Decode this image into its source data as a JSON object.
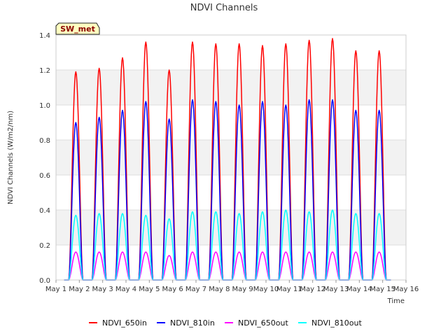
{
  "chart_data": {
    "type": "line",
    "title": "NDVI Channels",
    "xlabel": "Time",
    "ylabel": "NDVI Channels (W/m2/nm)",
    "badge": "SW_met",
    "xlim": [
      1,
      16
    ],
    "ylim": [
      0,
      1.4
    ],
    "x_ticks": [
      1,
      2,
      3,
      4,
      5,
      6,
      7,
      8,
      9,
      10,
      11,
      12,
      13,
      14,
      15,
      16
    ],
    "x_tick_labels": [
      "May 1",
      "May 2",
      "May 3",
      "May 4",
      "May 5",
      "May 6",
      "May 7",
      "May 8",
      "May 9",
      "May 10",
      "May 11",
      "May 12",
      "May 13",
      "May 14",
      "May 15",
      "May 16"
    ],
    "y_ticks": [
      0.0,
      0.2,
      0.4,
      0.6,
      0.8,
      1.0,
      1.2,
      1.4
    ],
    "y_tick_labels": [
      "0.0",
      "0.2",
      "0.4",
      "0.6",
      "0.8",
      "1.0",
      "1.2",
      "1.4"
    ],
    "days": [
      1.85,
      2.85,
      3.85,
      4.85,
      5.85,
      6.85,
      7.85,
      8.85,
      9.85,
      10.85,
      11.85,
      12.85,
      13.85,
      14.85
    ],
    "peak_half_width_days": 0.3,
    "series": [
      {
        "name": "NDVI_650in",
        "color": "#ff0000",
        "peaks": [
          1.19,
          1.21,
          1.27,
          1.36,
          1.2,
          1.36,
          1.35,
          1.35,
          1.34,
          1.35,
          1.37,
          1.38,
          1.31,
          1.31
        ]
      },
      {
        "name": "NDVI_810in",
        "color": "#0000ff",
        "peaks": [
          0.9,
          0.93,
          0.97,
          1.02,
          0.92,
          1.03,
          1.02,
          1.0,
          1.02,
          1.0,
          1.03,
          1.03,
          0.97,
          0.97
        ]
      },
      {
        "name": "NDVI_650out",
        "color": "#ff00ff",
        "peaks": [
          0.16,
          0.16,
          0.16,
          0.16,
          0.14,
          0.16,
          0.16,
          0.16,
          0.16,
          0.16,
          0.16,
          0.16,
          0.16,
          0.16
        ]
      },
      {
        "name": "NDVI_810out",
        "color": "#00ffff",
        "peaks": [
          0.37,
          0.38,
          0.38,
          0.37,
          0.35,
          0.39,
          0.39,
          0.38,
          0.39,
          0.4,
          0.39,
          0.4,
          0.38,
          0.38
        ]
      }
    ]
  }
}
